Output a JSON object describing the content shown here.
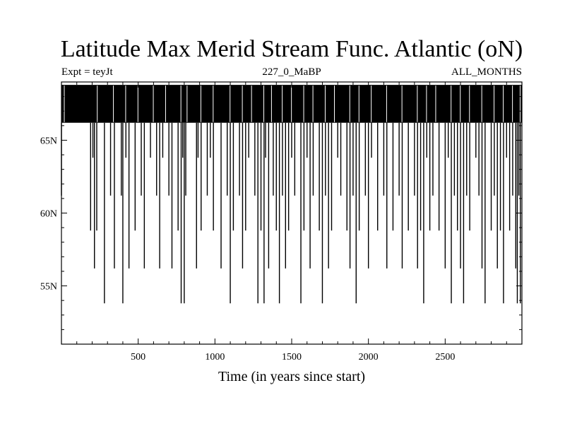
{
  "chart_data": {
    "type": "line",
    "title": "Latitude Max Merid Stream Func. Atlantic (oN)",
    "subtitle_left": "Expt = teyJt",
    "subtitle_center": "227_0_MaBP",
    "subtitle_right": "ALL_MONTHS",
    "xlabel": "Time (in years since start)",
    "ylabel": "",
    "xlim": [
      0,
      3000
    ],
    "ylim": [
      51,
      69
    ],
    "x_ticks": [
      500,
      1000,
      1500,
      2000,
      2500
    ],
    "y_ticks": [
      {
        "value": 55,
        "label": "55N"
      },
      {
        "value": 60,
        "label": "60N"
      },
      {
        "value": 65,
        "label": "65N"
      }
    ],
    "series": [
      {
        "name": "",
        "upper_band": [
          66.2,
          68.8
        ],
        "x": [
          0,
          190,
          205,
          215,
          230,
          280,
          320,
          345,
          390,
          400,
          420,
          440,
          480,
          520,
          540,
          580,
          620,
          640,
          660,
          700,
          720,
          760,
          780,
          790,
          800,
          810,
          880,
          890,
          910,
          950,
          970,
          990,
          1040,
          1080,
          1100,
          1120,
          1160,
          1180,
          1200,
          1220,
          1260,
          1280,
          1300,
          1320,
          1330,
          1350,
          1380,
          1400,
          1420,
          1440,
          1460,
          1480,
          1500,
          1520,
          1560,
          1580,
          1600,
          1620,
          1640,
          1680,
          1700,
          1720,
          1740,
          1760,
          1800,
          1820,
          1860,
          1880,
          1900,
          1920,
          1940,
          1980,
          2000,
          2020,
          2060,
          2100,
          2120,
          2160,
          2200,
          2220,
          2260,
          2300,
          2320,
          2340,
          2360,
          2380,
          2400,
          2420,
          2460,
          2500,
          2520,
          2540,
          2560,
          2580,
          2600,
          2620,
          2640,
          2660,
          2700,
          2720,
          2740,
          2760,
          2800,
          2820,
          2840,
          2860,
          2880,
          2900,
          2920,
          2940,
          2960,
          2970,
          2980,
          2990
        ],
        "values": [
          61.2,
          58.8,
          63.8,
          56.2,
          58.8,
          53.8,
          61.2,
          56.2,
          61.2,
          53.8,
          63.8,
          56.2,
          58.8,
          61.2,
          56.2,
          63.8,
          61.2,
          56.2,
          63.8,
          61.2,
          56.2,
          58.8,
          53.8,
          63.8,
          53.8,
          61.2,
          56.2,
          63.8,
          58.8,
          61.2,
          63.8,
          58.8,
          56.2,
          61.2,
          53.8,
          58.8,
          61.2,
          56.2,
          58.8,
          63.8,
          61.2,
          53.8,
          58.8,
          53.8,
          63.8,
          56.2,
          61.2,
          58.8,
          53.8,
          61.2,
          56.2,
          58.8,
          63.8,
          61.2,
          53.8,
          58.8,
          63.8,
          56.2,
          61.2,
          58.8,
          53.8,
          61.2,
          56.2,
          58.8,
          63.8,
          61.2,
          58.8,
          56.2,
          61.2,
          53.8,
          58.8,
          61.2,
          56.2,
          63.8,
          58.8,
          61.2,
          56.2,
          58.8,
          61.2,
          56.2,
          58.8,
          61.2,
          56.2,
          58.8,
          53.8,
          63.8,
          58.8,
          61.2,
          58.8,
          56.2,
          63.8,
          53.8,
          61.2,
          58.8,
          56.2,
          53.8,
          61.2,
          58.8,
          63.8,
          61.2,
          56.2,
          53.8,
          58.8,
          61.2,
          56.2,
          58.8,
          53.8,
          63.8,
          58.8,
          61.2,
          56.2,
          53.8,
          61.2,
          53.8
        ]
      }
    ],
    "grid": false,
    "legend": "none"
  }
}
